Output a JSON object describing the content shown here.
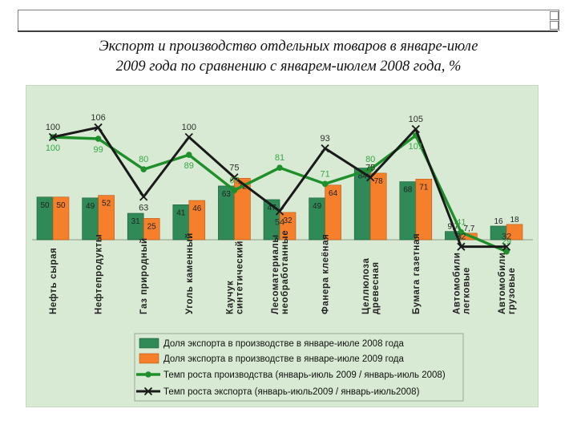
{
  "title": {
    "line1": "Экспорт и производство отдельных товаров в январе-июле",
    "line2": "2009 года по сравнению с январем-июлем 2008 года, %"
  },
  "colors": {
    "export_share_2008": "#2f8a57",
    "export_share_2009": "#f57f2a",
    "production_growth": "#1f8f2c",
    "export_growth": "#1a1a1a",
    "export_growth_label": "#303030",
    "production_label_color": "#3aa648",
    "panel": "#d8ead3"
  },
  "chart_data": {
    "type": "bar",
    "title": "Экспорт и производство отдельных товаров в январе-июле 2009 года по сравнению с январем-июлем 2008 года, %",
    "categories": [
      "Нефть сырая",
      "Нефтепродукты",
      "Газ природный",
      "Уголь каменный",
      "Каучук синтетический",
      "Лесоматериалы необработанные",
      "Фанера клеёная",
      "Целлюлоза древесная",
      "Бумага газетная",
      "Автомобили легковые",
      "Автомобили грузовые"
    ],
    "category_label_lines": [
      [
        "Нефть сырая"
      ],
      [
        "Нефтепродукты"
      ],
      [
        "Газ природный"
      ],
      [
        "Уголь каменный"
      ],
      [
        "Каучук",
        "синтетический"
      ],
      [
        "Лесоматериалы",
        "необработанные"
      ],
      [
        "Фанера клеёная"
      ],
      [
        "Целлюлоза",
        "древесная"
      ],
      [
        "Бумага газетная"
      ],
      [
        "Автомобили",
        "легковые"
      ],
      [
        "Автомобили",
        "грузовые"
      ]
    ],
    "series": [
      {
        "name": "Доля экспорта в производстве в январе-июле 2008 года",
        "kind": "bar",
        "values": [
          50,
          49,
          31,
          41,
          63,
          47,
          49,
          84,
          68,
          9.7,
          16
        ],
        "labels": [
          "50",
          "49",
          "31",
          "41",
          "63",
          "47",
          "49",
          "84",
          "68",
          "9,7",
          "16"
        ]
      },
      {
        "name": "Доля экспорта в производстве в январе-июле 2009 года",
        "kind": "bar",
        "values": [
          50,
          52,
          25,
          46,
          72,
          32,
          64,
          78,
          71,
          7.7,
          18
        ],
        "labels": [
          "50",
          "52",
          "25",
          "46",
          "72",
          "32",
          "64",
          "78",
          "71",
          "7,7",
          "18"
        ]
      },
      {
        "name": "Темп роста производства (январь-июль 2009 / январь-июль 2008)",
        "kind": "line",
        "marker": "circle",
        "values": [
          100,
          99,
          80,
          89,
          67,
          81,
          71,
          80,
          101,
          41,
          29
        ],
        "labels": [
          "100",
          "99",
          "80",
          "89",
          "67",
          "81",
          "71",
          "80",
          "101",
          "41",
          "29"
        ]
      },
      {
        "name": "Темп роста экспорта (январь-июль2009 / январь-июль2008)",
        "kind": "line",
        "marker": "x",
        "values": [
          100,
          106,
          63,
          100,
          75,
          54,
          93,
          75,
          105,
          32,
          32
        ],
        "labels": [
          "100",
          "106",
          "63",
          "100",
          "75",
          "54",
          "93",
          "75",
          "105",
          "32",
          "32"
        ]
      }
    ],
    "axes": {
      "bars_ylim": [
        0,
        100
      ],
      "lines_ylim": [
        0,
        130
      ]
    },
    "grid": false,
    "legend_position": "bottom"
  }
}
